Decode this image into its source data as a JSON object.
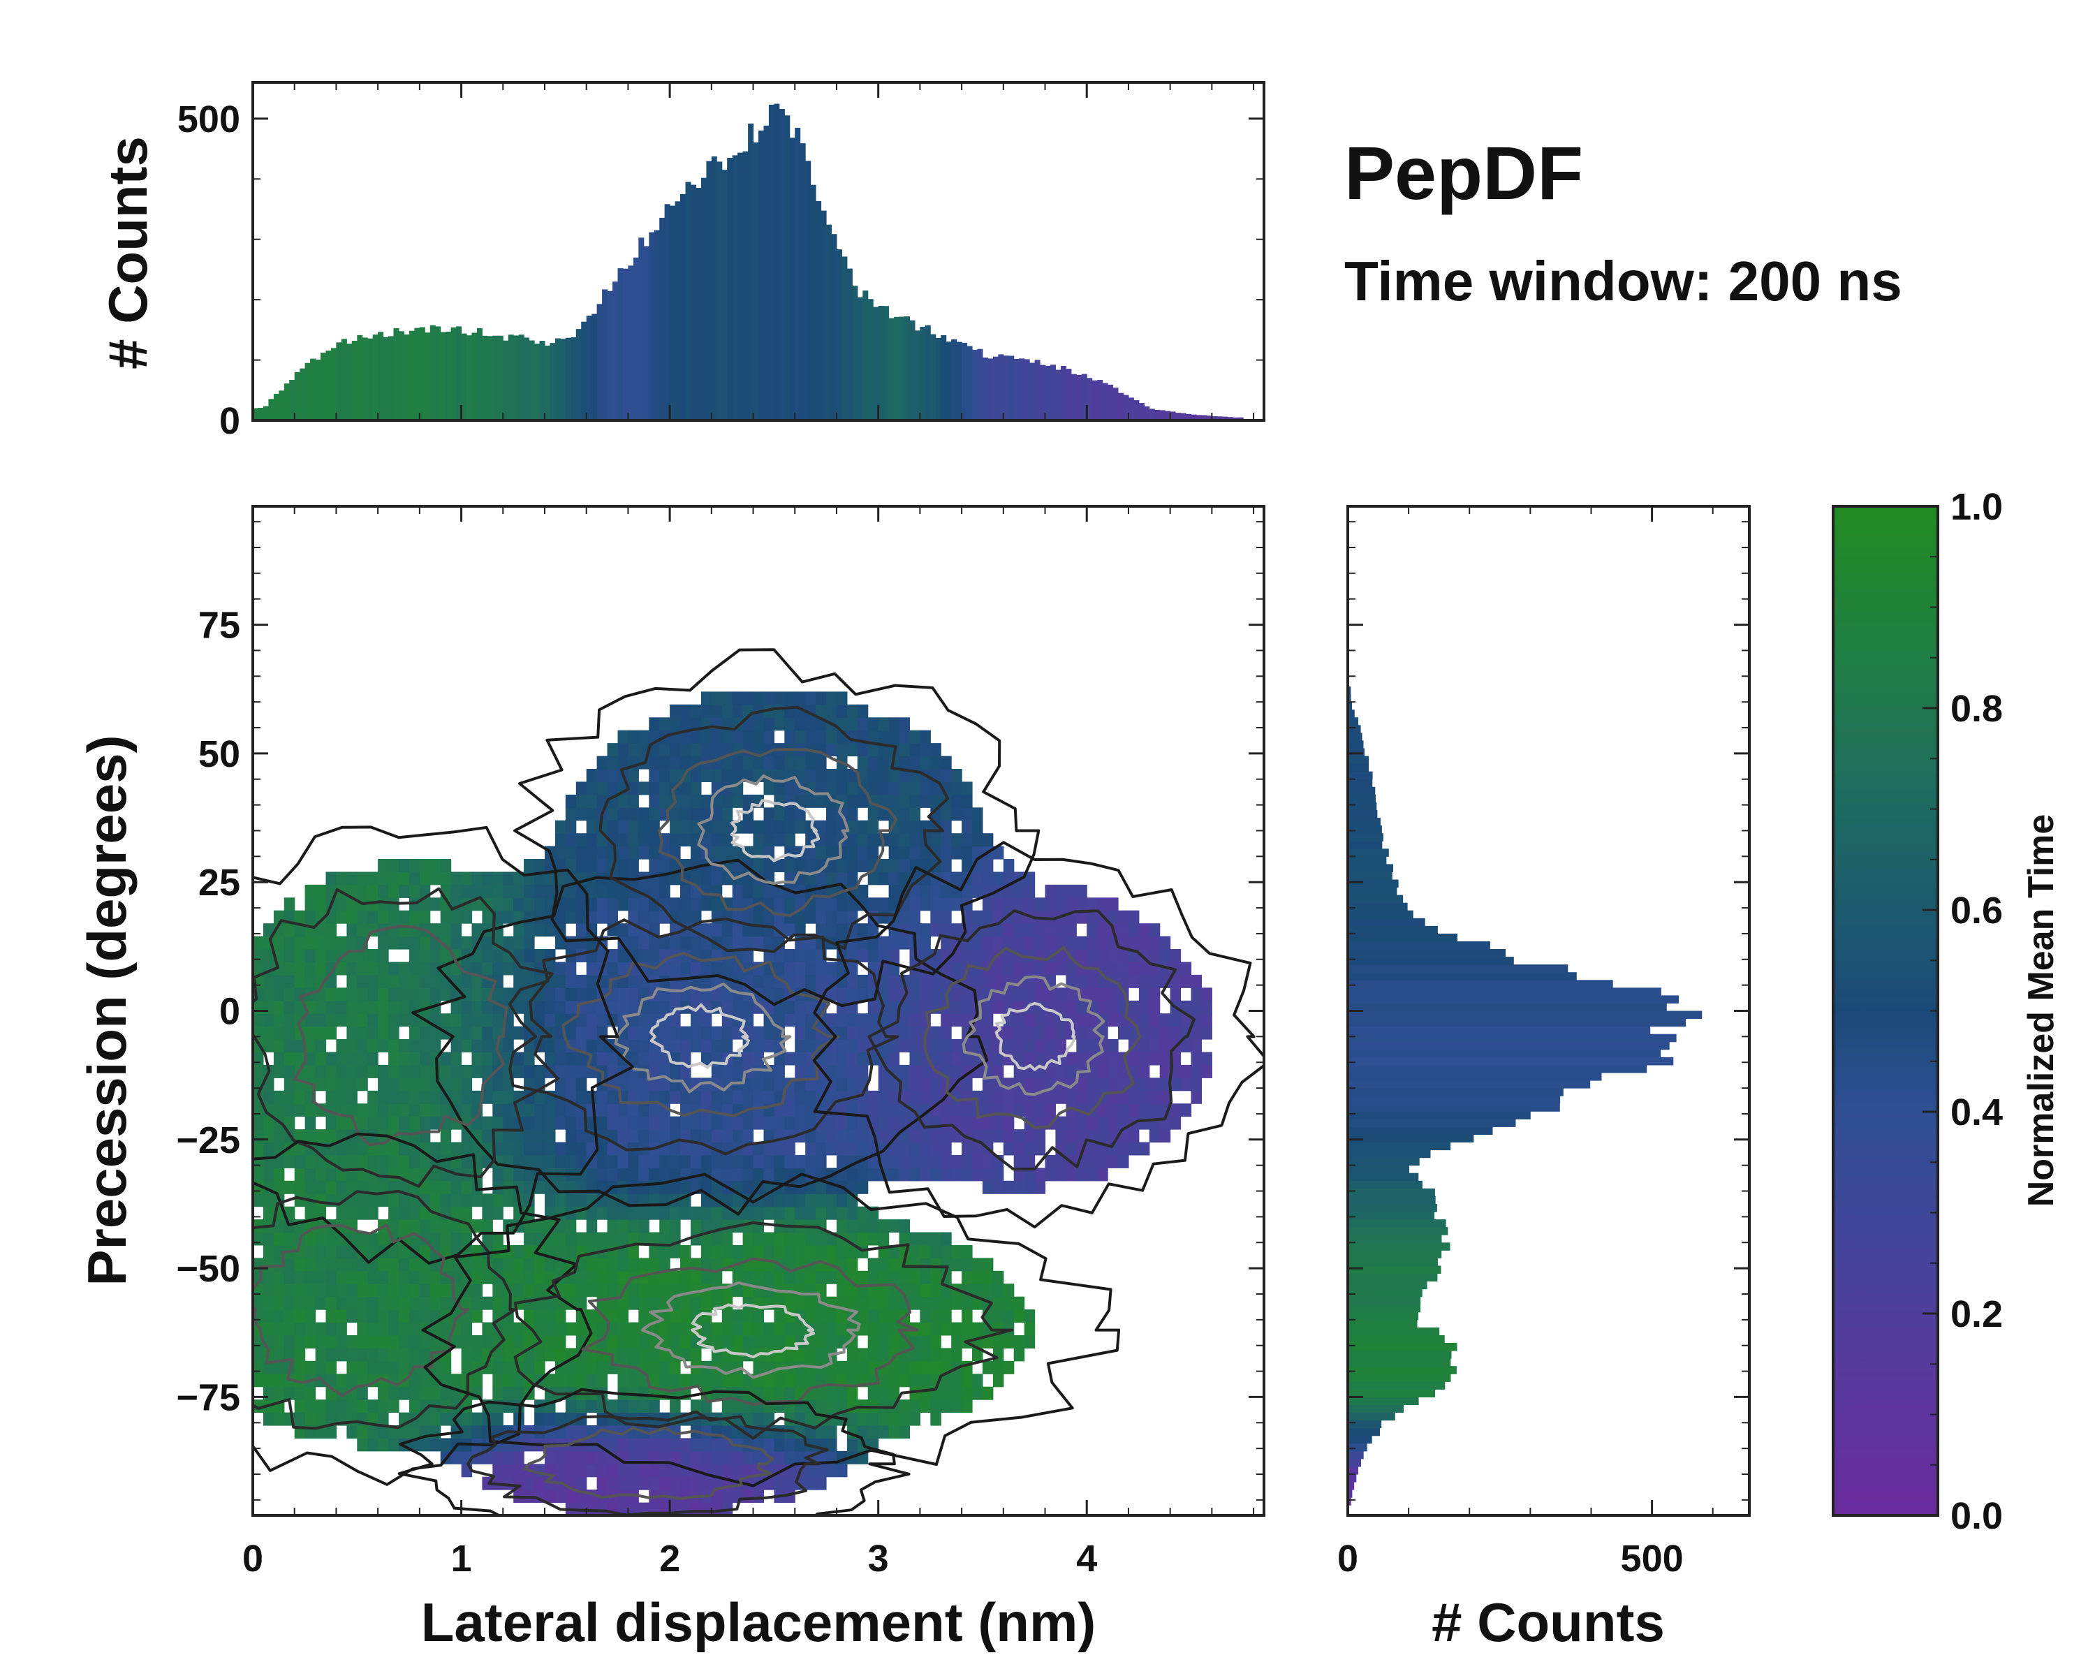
{
  "chart_data": {
    "type": "joint-density",
    "title": "PepDF",
    "subtitle": "Time window: 200 ns",
    "main": {
      "xlabel": "Lateral displacement (nm)",
      "ylabel": "Precession (degrees)",
      "xlim": [
        0,
        4.85
      ],
      "ylim": [
        -98,
        98
      ],
      "xticks": [
        0,
        1,
        2,
        3,
        4
      ],
      "xtick_labels": [
        "0",
        "1",
        "2",
        "3",
        "4"
      ],
      "yticks": [
        -75,
        -50,
        -25,
        0,
        25,
        50,
        75
      ],
      "ytick_labels": [
        "−75",
        "−50",
        "−25",
        "0",
        "25",
        "50",
        "75"
      ],
      "clusters": [
        {
          "name": "central",
          "x": 2.15,
          "y": -5,
          "sx": 0.55,
          "sy": 14,
          "weight": 1.0,
          "time": 0.4
        },
        {
          "name": "upper",
          "x": 2.5,
          "y": 35,
          "sx": 0.5,
          "sy": 14,
          "weight": 0.55,
          "time": 0.52
        },
        {
          "name": "left",
          "x": 0.7,
          "y": -5,
          "sx": 0.45,
          "sy": 18,
          "weight": 0.45,
          "time": 0.82
        },
        {
          "name": "right",
          "x": 3.75,
          "y": -5,
          "sx": 0.45,
          "sy": 15,
          "weight": 0.5,
          "time": 0.22
        },
        {
          "name": "lower-left",
          "x": 0.5,
          "y": -58,
          "sx": 0.45,
          "sy": 14,
          "weight": 0.42,
          "time": 0.85
        },
        {
          "name": "lower-middle",
          "x": 2.4,
          "y": -62,
          "sx": 0.7,
          "sy": 12,
          "weight": 0.5,
          "time": 0.9
        },
        {
          "name": "bottom",
          "x": 1.9,
          "y": -88,
          "sx": 0.5,
          "sy": 6,
          "weight": 0.3,
          "time": 0.1
        }
      ]
    },
    "top_hist": {
      "ylabel": "# Counts",
      "ylim": [
        0,
        560
      ],
      "yticks": [
        0,
        500
      ],
      "ytick_labels": [
        "0",
        "500"
      ],
      "x": [
        0.05,
        0.2,
        0.4,
        0.6,
        0.8,
        1.0,
        1.2,
        1.4,
        1.55,
        1.7,
        1.85,
        2.0,
        2.2,
        2.4,
        2.5,
        2.6,
        2.75,
        2.9,
        3.1,
        3.3,
        3.5,
        3.7,
        3.9,
        4.1,
        4.3,
        4.5,
        4.7
      ],
      "counts": [
        20,
        75,
        125,
        140,
        150,
        150,
        140,
        130,
        140,
        220,
        280,
        360,
        410,
        470,
        505,
        470,
        330,
        220,
        170,
        140,
        110,
        100,
        85,
        60,
        20,
        10,
        5
      ],
      "time": [
        0.85,
        0.85,
        0.84,
        0.84,
        0.84,
        0.82,
        0.78,
        0.7,
        0.55,
        0.42,
        0.4,
        0.5,
        0.52,
        0.52,
        0.5,
        0.5,
        0.52,
        0.6,
        0.7,
        0.55,
        0.35,
        0.3,
        0.25,
        0.2,
        0.18,
        0.15,
        0.15
      ]
    },
    "right_hist": {
      "xlabel": "# Counts",
      "xlim": [
        0,
        660
      ],
      "xticks": [
        0,
        500
      ],
      "xtick_labels": [
        "0",
        "500"
      ],
      "y": [
        -95,
        -90,
        -85,
        -80,
        -75,
        -70,
        -65,
        -60,
        -55,
        -50,
        -45,
        -40,
        -35,
        -30,
        -25,
        -20,
        -15,
        -10,
        -5,
        0,
        5,
        10,
        15,
        20,
        25,
        30,
        35,
        40,
        45,
        50,
        55,
        60
      ],
      "counts": [
        5,
        15,
        30,
        60,
        130,
        175,
        180,
        110,
        115,
        150,
        160,
        150,
        140,
        100,
        190,
        320,
        370,
        500,
        520,
        560,
        470,
        280,
        170,
        95,
        80,
        65,
        55,
        45,
        40,
        30,
        20,
        5
      ],
      "time": [
        0.1,
        0.1,
        0.4,
        0.6,
        0.85,
        0.88,
        0.88,
        0.85,
        0.8,
        0.82,
        0.78,
        0.7,
        0.65,
        0.55,
        0.5,
        0.45,
        0.43,
        0.42,
        0.42,
        0.44,
        0.45,
        0.48,
        0.5,
        0.52,
        0.52,
        0.52,
        0.52,
        0.5,
        0.5,
        0.5,
        0.5,
        0.5
      ]
    },
    "colorbar": {
      "label": "Normalized Mean Time",
      "range": [
        0.0,
        1.0
      ],
      "ticks": [
        0.0,
        0.2,
        0.4,
        0.6,
        0.8,
        1.0
      ],
      "tick_labels": [
        "0.0",
        "0.2",
        "0.4",
        "0.6",
        "0.8",
        "1.0"
      ],
      "colors": [
        "#6a2c9e",
        "#4f3f9c",
        "#2f4f93",
        "#1c4a78",
        "#1e6a62",
        "#217e45",
        "#228b22"
      ]
    }
  }
}
